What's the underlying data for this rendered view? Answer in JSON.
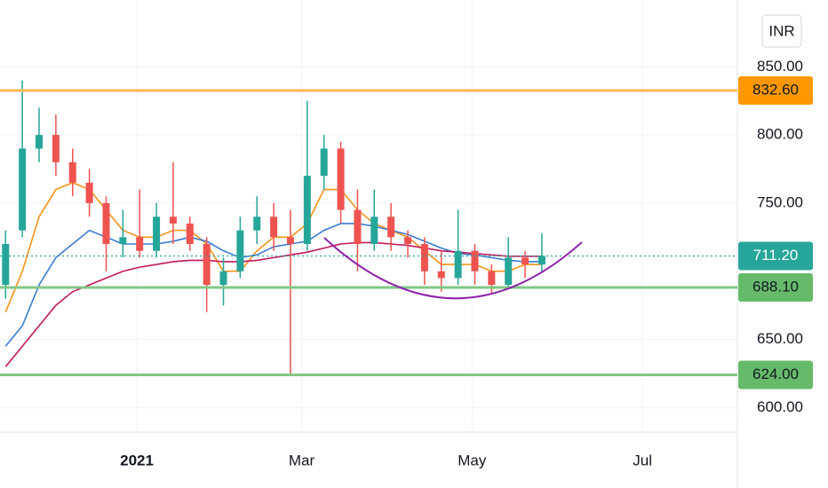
{
  "chart_data": {
    "type": "candlestick",
    "currency": "INR",
    "x": [
      -47,
      -41,
      -35,
      -29,
      -23,
      -17,
      -11,
      -5,
      1,
      7,
      13,
      19,
      25,
      31,
      37,
      43,
      49,
      55,
      61,
      67,
      73,
      79,
      85,
      91,
      97,
      103,
      109,
      115,
      121,
      127,
      133,
      139,
      145
    ],
    "open": [
      690,
      730,
      790,
      800,
      780,
      765,
      750,
      720,
      725,
      715,
      740,
      735,
      720,
      690,
      700,
      730,
      740,
      725,
      720,
      770,
      790,
      745,
      720,
      740,
      725,
      720,
      700,
      695,
      715,
      700,
      690,
      710,
      705
    ],
    "high": [
      730,
      840,
      820,
      815,
      790,
      775,
      755,
      745,
      760,
      750,
      780,
      740,
      725,
      710,
      740,
      755,
      750,
      745,
      825,
      800,
      795,
      760,
      760,
      750,
      730,
      725,
      715,
      745,
      720,
      705,
      725,
      715,
      728
    ],
    "low": [
      680,
      725,
      780,
      770,
      755,
      740,
      700,
      710,
      710,
      710,
      720,
      715,
      670,
      675,
      695,
      720,
      715,
      625,
      715,
      760,
      735,
      700,
      715,
      715,
      710,
      690,
      685,
      690,
      690,
      683,
      688,
      695,
      700
    ],
    "close": [
      720,
      790,
      800,
      780,
      765,
      750,
      720,
      725,
      715,
      740,
      735,
      720,
      690,
      700,
      730,
      740,
      725,
      720,
      770,
      790,
      745,
      720,
      740,
      725,
      720,
      700,
      695,
      715,
      700,
      690,
      710,
      705,
      711.2
    ],
    "up_color": "#26a69a",
    "down_color": "#ef5350",
    "series": [
      {
        "color": "#f7931a",
        "values": [
          670,
          700,
          740,
          760,
          765,
          760,
          745,
          730,
          725,
          725,
          730,
          730,
          720,
          700,
          700,
          715,
          725,
          725,
          735,
          760,
          760,
          745,
          735,
          730,
          725,
          715,
          705,
          705,
          705,
          700,
          700,
          705,
          705
        ]
      },
      {
        "color": "#3a7bd5",
        "values": [
          645,
          660,
          690,
          710,
          720,
          730,
          725,
          720,
          720,
          720,
          722,
          725,
          722,
          715,
          710,
          712,
          718,
          720,
          722,
          730,
          735,
          735,
          733,
          730,
          727,
          722,
          717,
          713,
          712,
          710,
          708,
          707,
          707
        ]
      },
      {
        "color": "#c2185b",
        "values": [
          630,
          645,
          660,
          675,
          685,
          690,
          695,
          700,
          703,
          705,
          707,
          708,
          708,
          707,
          707,
          708,
          710,
          712,
          714,
          717,
          720,
          721,
          721,
          720,
          719,
          717,
          715,
          714,
          713,
          712,
          711,
          711,
          711
        ]
      }
    ],
    "levels": [
      {
        "value": 832.6,
        "label": "832.60",
        "color": "#ffb74d",
        "box": "#ff9800"
      },
      {
        "value": 688.1,
        "label": "688.10",
        "color": "#81c784",
        "box": "#66bb6a"
      },
      {
        "value": 624,
        "label": "624.00",
        "color": "#81c784",
        "box": "#66bb6a"
      }
    ],
    "last_price": {
      "value": 711.2,
      "label": "711.20",
      "color": "#26a69a"
    },
    "xlim": [
      -49,
      215
    ],
    "xticks": [
      {
        "value": 0,
        "label": "2021"
      },
      {
        "value": 59,
        "label": "Mar"
      },
      {
        "value": 120,
        "label": "May"
      },
      {
        "value": 181,
        "label": "Jul"
      }
    ],
    "ylim": [
      582,
      899
    ],
    "yticks": [
      {
        "value": 600,
        "label": "600.00"
      },
      {
        "value": 650,
        "label": "650.00"
      },
      {
        "value": 750,
        "label": "750.00"
      },
      {
        "value": 800,
        "label": "800.00"
      },
      {
        "value": 850,
        "label": "850.00"
      }
    ]
  }
}
